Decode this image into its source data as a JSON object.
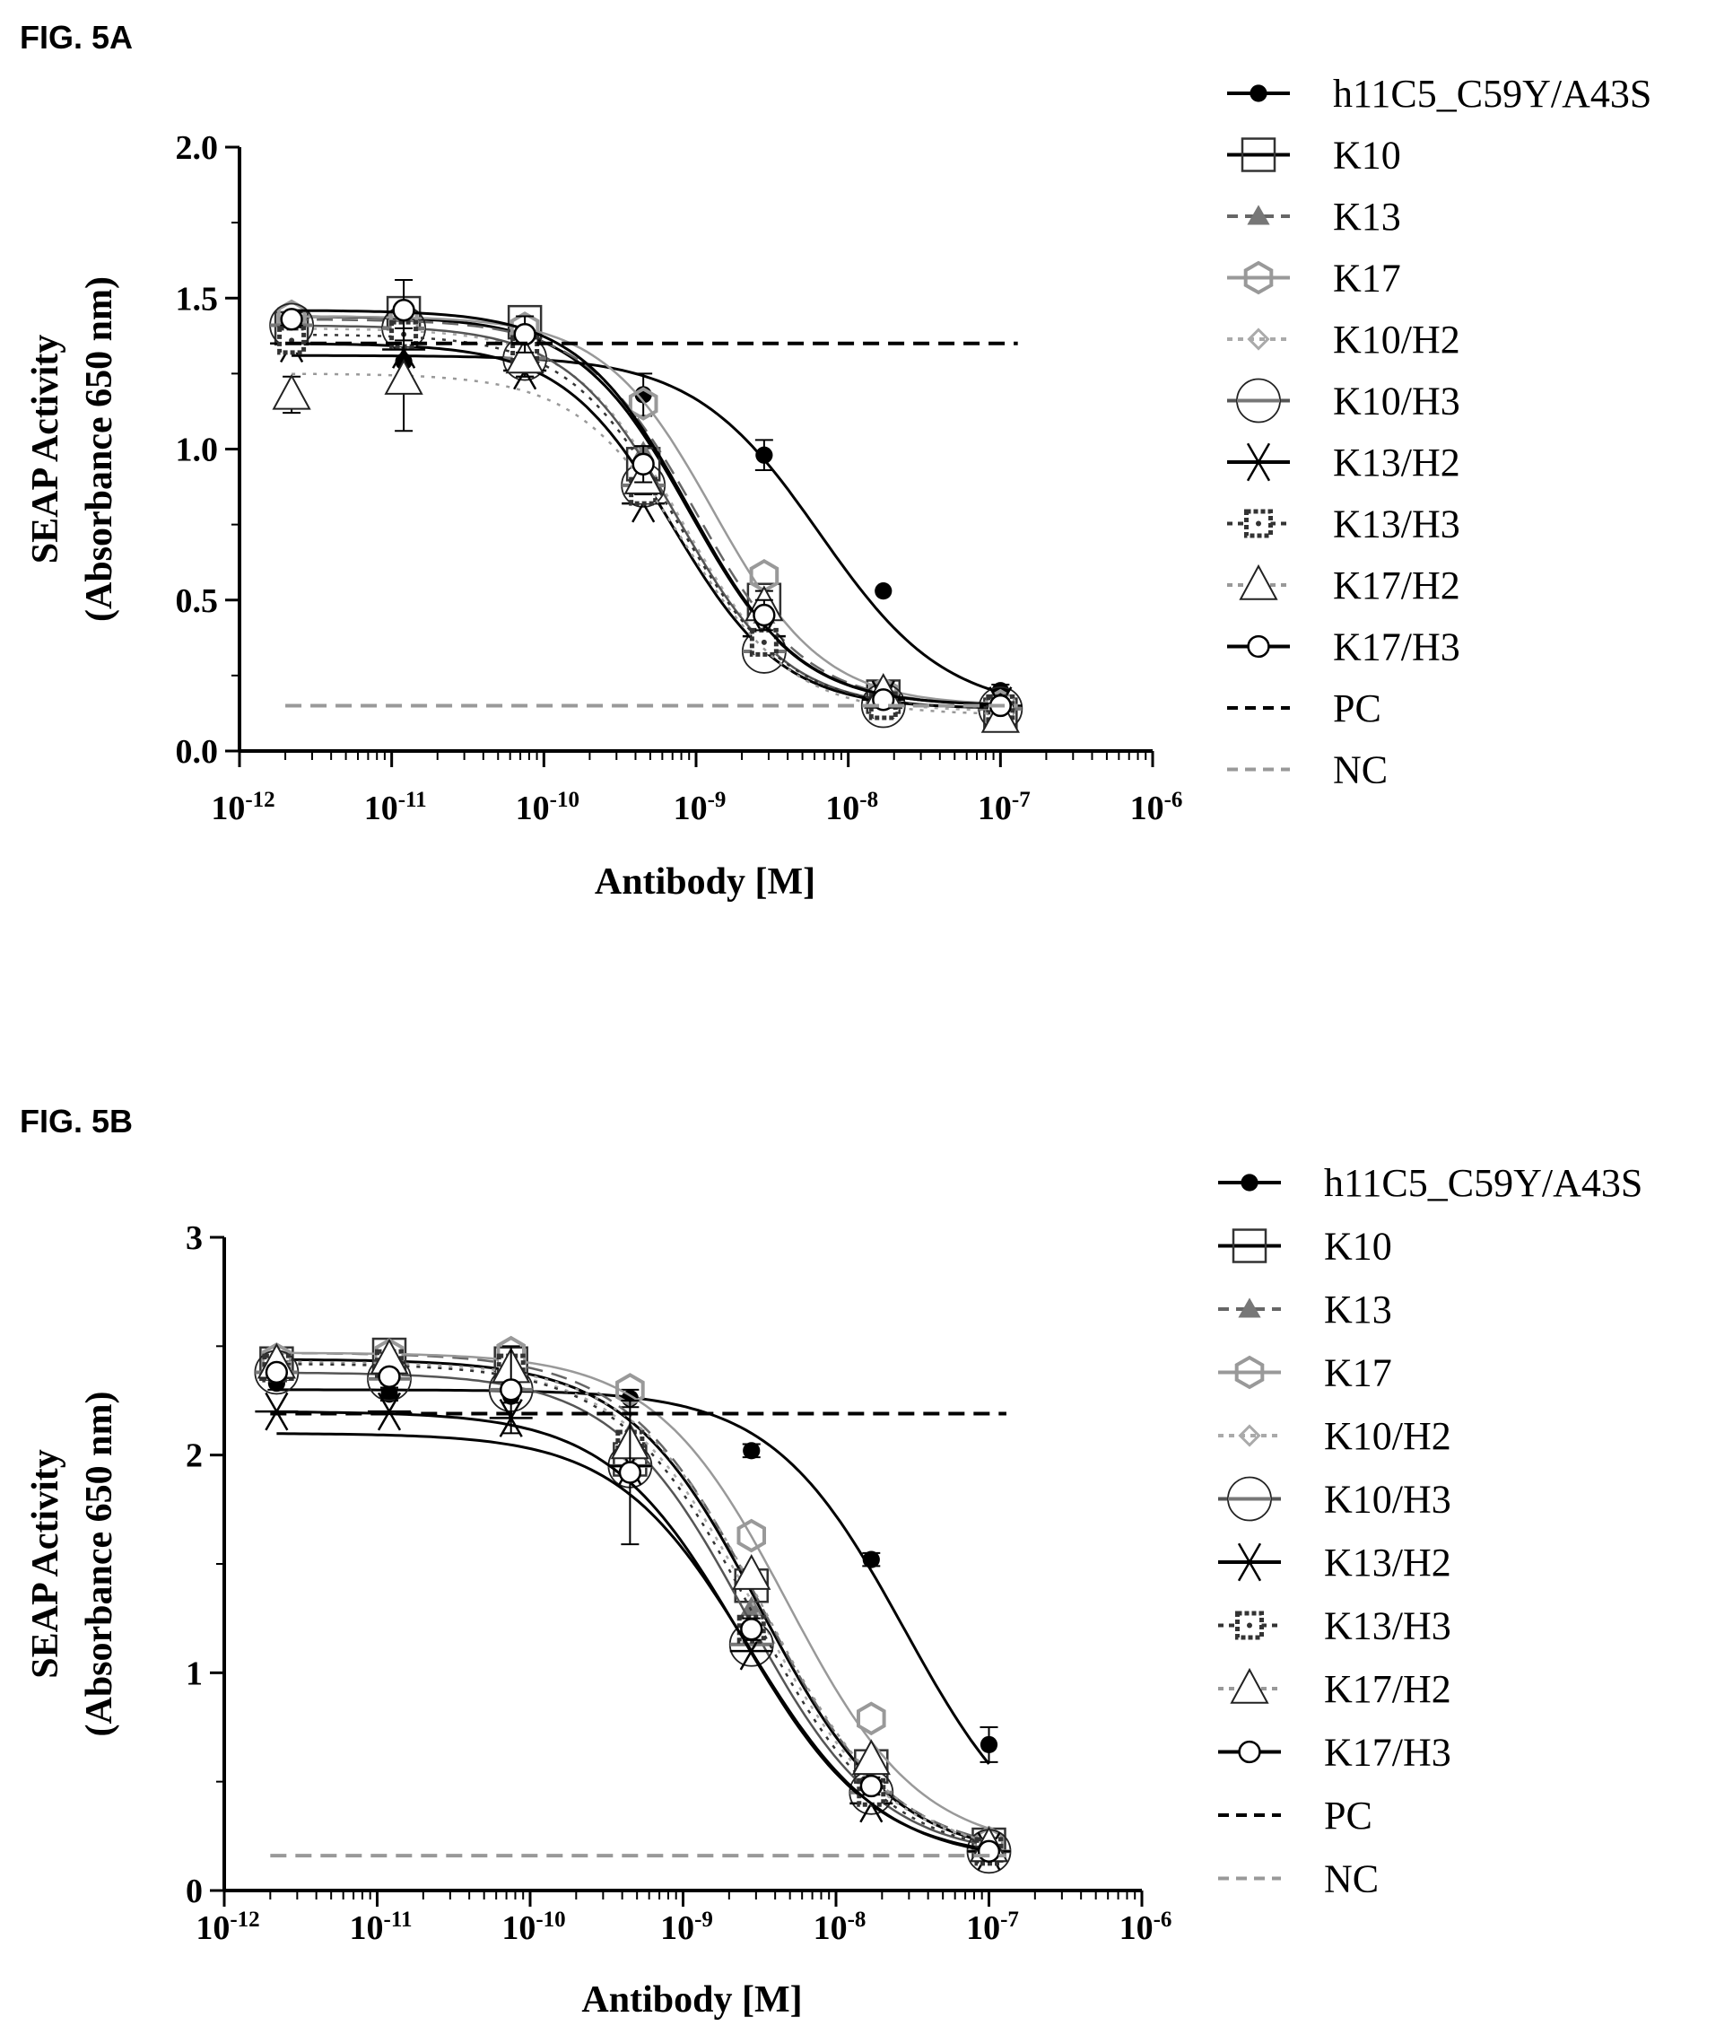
{
  "chart_data": [
    {
      "type": "line",
      "figure_label": "FIG. 5A",
      "xlabel": "Antibody [M]",
      "ylabel_line1": "SEAP Activity",
      "ylabel_line2": "(Absorbance 650 nm)",
      "x_scale": "log",
      "xlim": [
        1e-12,
        1e-06
      ],
      "ylim": [
        0,
        2.0
      ],
      "yticks": [
        0.0,
        0.5,
        1.0,
        1.5,
        2.0
      ],
      "ytick_labels": [
        "0.0",
        "0.5",
        "1.0",
        "1.5",
        "2.0"
      ],
      "xticks": [
        1e-12,
        1e-11,
        1e-10,
        1e-09,
        1e-08,
        1e-07,
        1e-06
      ],
      "xtick_labels": [
        {
          "base": "10",
          "exp": "-12"
        },
        {
          "base": "10",
          "exp": "-11"
        },
        {
          "base": "10",
          "exp": "-10"
        },
        {
          "base": "10",
          "exp": "-9"
        },
        {
          "base": "10",
          "exp": "-8"
        },
        {
          "base": "10",
          "exp": "-7"
        },
        {
          "base": "10",
          "exp": "-6"
        }
      ],
      "x": [
        2.2e-12,
        1.2e-11,
        7.5e-11,
        4.5e-10,
        2.8e-09,
        1.7e-08,
        1e-07
      ],
      "legend_position": "right",
      "series": [
        {
          "name": "h11C5_C59Y/A43S",
          "marker": "dot",
          "line": "solid",
          "color": "#000000",
          "y": [
            1.37,
            1.29,
            1.28,
            1.18,
            0.98,
            0.53,
            0.2
          ],
          "err": [
            0.02,
            0.05,
            0.04,
            0.07,
            0.05,
            0,
            0.02
          ],
          "fit": {
            "top": 1.31,
            "bottom": 0.13,
            "ec50": 6.5e-09,
            "hill": 1.05
          }
        },
        {
          "name": "K10",
          "marker": "square",
          "line": "solid",
          "color": "#000000",
          "y": [
            1.4,
            1.45,
            1.42,
            0.95,
            0.5,
            0.18,
            0.12
          ],
          "fit": {
            "top": 1.44,
            "bottom": 0.15,
            "ec50": 9e-10,
            "hill": 1.2
          }
        },
        {
          "name": "K13",
          "marker": "smalltriangle",
          "line": "dashed",
          "color": "#666666",
          "y": [
            1.43,
            1.44,
            1.36,
            0.99,
            0.45,
            0.18,
            0.15
          ],
          "fit": {
            "top": 1.43,
            "bottom": 0.15,
            "ec50": 1e-09,
            "hill": 1.2
          }
        },
        {
          "name": "K17",
          "marker": "hexagon",
          "line": "solid",
          "color": "#999999",
          "y": [
            1.44,
            1.43,
            1.4,
            1.15,
            0.58,
            0.19,
            0.15
          ],
          "fit": {
            "top": 1.44,
            "bottom": 0.15,
            "ec50": 1.3e-09,
            "hill": 1.2
          }
        },
        {
          "name": "K10/H2",
          "marker": "diamond",
          "line": "dotted",
          "color": "#aaaaaa",
          "y": [
            1.38,
            1.4,
            1.34,
            0.9,
            0.38,
            0.15,
            0.12
          ],
          "fit": {
            "top": 1.4,
            "bottom": 0.13,
            "ec50": 8e-10,
            "hill": 1.2
          }
        },
        {
          "name": "K10/H3",
          "marker": "circle-bar",
          "line": "solid",
          "color": "#555555",
          "y": [
            1.41,
            1.4,
            1.3,
            0.88,
            0.33,
            0.15,
            0.14
          ],
          "fit": {
            "top": 1.41,
            "bottom": 0.14,
            "ec50": 7.5e-10,
            "hill": 1.2
          }
        },
        {
          "name": "K13/H2",
          "marker": "asterisk",
          "line": "solid",
          "color": "#000000",
          "y": [
            1.35,
            1.33,
            1.26,
            0.82,
            0.38,
            0.17,
            0.15
          ],
          "fit": {
            "top": 1.35,
            "bottom": 0.14,
            "ec50": 7e-10,
            "hill": 1.2
          }
        },
        {
          "name": "K13/H3",
          "marker": "dotsquare",
          "line": "dotted",
          "color": "#333333",
          "y": [
            1.36,
            1.38,
            1.33,
            0.86,
            0.36,
            0.15,
            0.14
          ],
          "fit": {
            "top": 1.38,
            "bottom": 0.14,
            "ec50": 7.5e-10,
            "hill": 1.2
          }
        },
        {
          "name": "K17/H2",
          "marker": "triangle",
          "line": "dotted",
          "color": "#999999",
          "y": [
            1.18,
            1.23,
            1.3,
            0.9,
            0.48,
            0.19,
            0.11
          ],
          "err": [
            0.06,
            0.17,
            0.06,
            0.05,
            0.05,
            0.02,
            0.02
          ],
          "fit": {
            "top": 1.25,
            "bottom": 0.12,
            "ec50": 8.5e-10,
            "hill": 1.2
          }
        },
        {
          "name": "K17/H3",
          "marker": "open-circle",
          "line": "solid",
          "color": "#000000",
          "y": [
            1.43,
            1.46,
            1.38,
            0.95,
            0.45,
            0.17,
            0.15
          ],
          "err": [
            0.02,
            0.1,
            0.06,
            0.06,
            0.05,
            0.02,
            0.02
          ],
          "fit": {
            "top": 1.46,
            "bottom": 0.15,
            "ec50": 9e-10,
            "hill": 1.2
          }
        },
        {
          "name": "PC",
          "marker": "none",
          "line": "dashed",
          "color": "#000000",
          "hline": 1.35
        },
        {
          "name": "NC",
          "marker": "none",
          "line": "dashed",
          "color": "#999999",
          "hline": 0.15
        }
      ]
    },
    {
      "type": "line",
      "figure_label": "FIG. 5B",
      "xlabel": "Antibody [M]",
      "ylabel_line1": "SEAP Activity",
      "ylabel_line2": "(Absorbance 650 nm)",
      "x_scale": "log",
      "xlim": [
        1e-12,
        1e-06
      ],
      "ylim": [
        0,
        3
      ],
      "yticks": [
        0,
        1,
        2,
        3
      ],
      "ytick_labels": [
        "0",
        "1",
        "2",
        "3"
      ],
      "xticks": [
        1e-12,
        1e-11,
        1e-10,
        1e-09,
        1e-08,
        1e-07,
        1e-06
      ],
      "xtick_labels": [
        {
          "base": "10",
          "exp": "-12"
        },
        {
          "base": "10",
          "exp": "-11"
        },
        {
          "base": "10",
          "exp": "-10"
        },
        {
          "base": "10",
          "exp": "-9"
        },
        {
          "base": "10",
          "exp": "-8"
        },
        {
          "base": "10",
          "exp": "-7"
        },
        {
          "base": "10",
          "exp": "-6"
        }
      ],
      "x": [
        2.2e-12,
        1.2e-11,
        7.5e-11,
        4.5e-10,
        2.8e-09,
        1.7e-08,
        1e-07
      ],
      "legend_position": "right",
      "series": [
        {
          "name": "h11C5_C59Y/A43S",
          "marker": "dot",
          "line": "solid",
          "color": "#000000",
          "y": [
            2.33,
            2.28,
            2.27,
            2.26,
            2.02,
            1.52,
            0.67
          ],
          "err": [
            0.03,
            0.03,
            0.03,
            0.04,
            0.03,
            0.03,
            0.08
          ],
          "fit": {
            "top": 2.3,
            "bottom": 0.1,
            "ec50": 2.8e-08,
            "hill": 1.0
          }
        },
        {
          "name": "K10",
          "marker": "square",
          "line": "solid",
          "color": "#000000",
          "y": [
            2.42,
            2.46,
            2.42,
            1.98,
            1.4,
            0.57,
            0.21
          ],
          "fit": {
            "top": 2.44,
            "bottom": 0.15,
            "ec50": 3.2e-09,
            "hill": 1.0
          }
        },
        {
          "name": "K13",
          "marker": "smalltriangle",
          "line": "dashed",
          "color": "#666666",
          "y": [
            2.45,
            2.47,
            2.43,
            2.1,
            1.3,
            0.5,
            0.2
          ],
          "fit": {
            "top": 2.47,
            "bottom": 0.16,
            "ec50": 3.2e-09,
            "hill": 1.0
          }
        },
        {
          "name": "K17",
          "marker": "hexagon",
          "line": "solid",
          "color": "#999999",
          "y": [
            2.44,
            2.46,
            2.47,
            2.3,
            1.63,
            0.79,
            0.22
          ],
          "fit": {
            "top": 2.47,
            "bottom": 0.18,
            "ec50": 4.8e-09,
            "hill": 1.0
          }
        },
        {
          "name": "K10/H2",
          "marker": "diamond",
          "line": "dotted",
          "color": "#aaaaaa",
          "y": [
            2.38,
            2.4,
            2.38,
            2.0,
            1.15,
            0.45,
            0.18
          ],
          "fit": {
            "top": 2.42,
            "bottom": 0.16,
            "ec50": 3e-09,
            "hill": 1.0
          }
        },
        {
          "name": "K10/H3",
          "marker": "circle-bar",
          "line": "solid",
          "color": "#555555",
          "y": [
            2.38,
            2.35,
            2.3,
            1.95,
            1.13,
            0.45,
            0.18
          ],
          "fit": {
            "top": 2.38,
            "bottom": 0.15,
            "ec50": 2.6e-09,
            "hill": 1.0
          }
        },
        {
          "name": "K13/H2",
          "marker": "asterisk",
          "line": "solid",
          "color": "#000000",
          "y": [
            2.2,
            2.2,
            2.17,
            1.95,
            1.1,
            0.4,
            0.18
          ],
          "fit": {
            "top": 2.2,
            "bottom": 0.14,
            "ec50": 2.4e-09,
            "hill": 1.0
          }
        },
        {
          "name": "K13/H3",
          "marker": "dotsquare",
          "line": "dotted",
          "color": "#333333",
          "y": [
            2.4,
            2.42,
            2.4,
            2.05,
            1.2,
            0.45,
            0.18
          ],
          "fit": {
            "top": 2.42,
            "bottom": 0.15,
            "ec50": 2.8e-09,
            "hill": 1.0
          }
        },
        {
          "name": "K17/H2",
          "marker": "triangle",
          "line": "dotted",
          "color": "#999999",
          "y": [
            2.42,
            2.44,
            2.4,
            2.05,
            1.45,
            0.6,
            0.2
          ],
          "fit": {
            "top": 2.43,
            "bottom": 0.15,
            "ec50": 3.4e-09,
            "hill": 1.0
          }
        },
        {
          "name": "K17/H3",
          "marker": "open-circle",
          "line": "solid",
          "color": "#000000",
          "y": [
            2.38,
            2.36,
            2.3,
            1.92,
            1.2,
            0.48,
            0.18
          ],
          "err": [
            0.03,
            0.03,
            0.2,
            0.33,
            0.05,
            0.04,
            0.03
          ],
          "fit": {
            "top": 2.1,
            "bottom": 0.13,
            "ec50": 2.7e-09,
            "hill": 1.0
          }
        },
        {
          "name": "PC",
          "marker": "none",
          "line": "dashed",
          "color": "#000000",
          "hline": 2.19
        },
        {
          "name": "NC",
          "marker": "none",
          "line": "dashed",
          "color": "#999999",
          "hline": 0.16
        }
      ]
    }
  ]
}
